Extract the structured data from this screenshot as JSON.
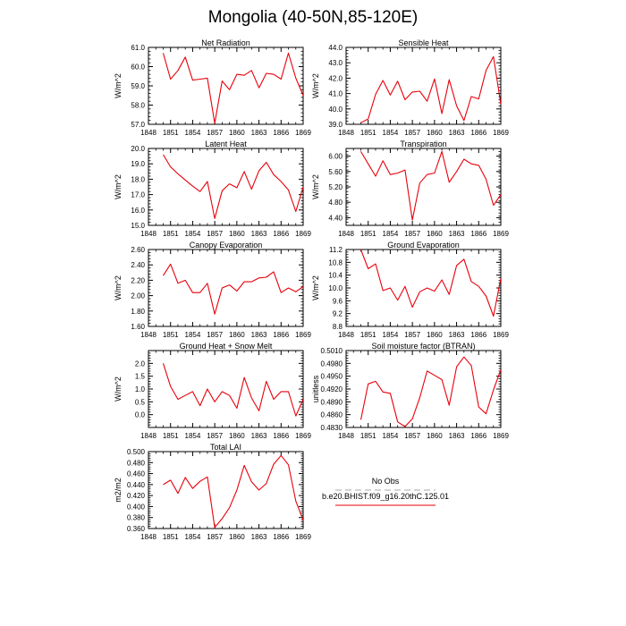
{
  "title": "Mongolia (40-50N,85-120E)",
  "legend": {
    "entries": [
      {
        "label": "No Obs",
        "color": "#aaaaaa",
        "dash": true
      },
      {
        "label": "b.e20.BHIST.f09_g16.20thC.125.01",
        "color": "#e8000b",
        "dash": false
      }
    ]
  },
  "chart_data": [
    {
      "type": "line",
      "title": "Net Radiation",
      "ylabel": "W/m^2",
      "xlim": [
        1848,
        1869
      ],
      "ylim": [
        57.0,
        61.0
      ],
      "xticks": [
        1848,
        1851,
        1854,
        1857,
        1860,
        1863,
        1866,
        1869
      ],
      "xtick_labels": [
        "1848",
        "1851",
        "1854",
        "1857",
        "1860",
        "1863",
        "1866",
        "1869"
      ],
      "yticks": [
        57.0,
        58.0,
        59.0,
        60.0,
        61.0
      ],
      "ytick_labels": [
        "57.0",
        "58.0",
        "59.0",
        "60.0",
        "61.0"
      ],
      "series": [
        {
          "color": "#e8000b",
          "x": [
            1850,
            1851,
            1852,
            1853,
            1854,
            1855,
            1856,
            1857,
            1858,
            1859,
            1860,
            1861,
            1862,
            1863,
            1864,
            1865,
            1866,
            1867,
            1868,
            1869
          ],
          "y": [
            60.7,
            59.35,
            59.8,
            60.5,
            59.3,
            59.35,
            59.4,
            57.05,
            59.25,
            58.8,
            59.6,
            59.55,
            59.8,
            58.9,
            59.65,
            59.6,
            59.35,
            60.7,
            59.4,
            58.5
          ]
        }
      ]
    },
    {
      "type": "line",
      "title": "Sensible Heat",
      "ylabel": "W/m^2",
      "xlim": [
        1848,
        1869
      ],
      "ylim": [
        39.0,
        44.0
      ],
      "xticks": [
        1848,
        1851,
        1854,
        1857,
        1860,
        1863,
        1866,
        1869
      ],
      "xtick_labels": [
        "1848",
        "1851",
        "1854",
        "1857",
        "1860",
        "1863",
        "1866",
        "1869"
      ],
      "yticks": [
        39.0,
        40.0,
        41.0,
        42.0,
        43.0,
        44.0
      ],
      "ytick_labels": [
        "39.0",
        "40.0",
        "41.0",
        "42.0",
        "43.0",
        "44.0"
      ],
      "series": [
        {
          "color": "#e8000b",
          "x": [
            1850,
            1851,
            1852,
            1853,
            1854,
            1855,
            1856,
            1857,
            1858,
            1859,
            1860,
            1861,
            1862,
            1863,
            1864,
            1865,
            1866,
            1867,
            1868,
            1869
          ],
          "y": [
            39.1,
            39.35,
            40.95,
            41.85,
            40.9,
            41.8,
            40.6,
            41.1,
            41.15,
            40.5,
            41.95,
            39.7,
            41.9,
            40.2,
            39.25,
            40.8,
            40.65,
            42.5,
            43.4,
            40.3
          ]
        }
      ]
    },
    {
      "type": "line",
      "title": "Latent Heat",
      "ylabel": "W/m^2",
      "xlim": [
        1848,
        1869
      ],
      "ylim": [
        15.0,
        20.0
      ],
      "xticks": [
        1848,
        1851,
        1854,
        1857,
        1860,
        1863,
        1866,
        1869
      ],
      "xtick_labels": [
        "1848",
        "1851",
        "1854",
        "1857",
        "1860",
        "1863",
        "1866",
        "1869"
      ],
      "yticks": [
        15.0,
        16.0,
        17.0,
        18.0,
        19.0,
        20.0
      ],
      "ytick_labels": [
        "15.0",
        "16.0",
        "17.0",
        "18.0",
        "19.0",
        "20.0"
      ],
      "series": [
        {
          "color": "#e8000b",
          "x": [
            1850,
            1851,
            1852,
            1853,
            1854,
            1855,
            1856,
            1857,
            1858,
            1859,
            1860,
            1861,
            1862,
            1863,
            1864,
            1865,
            1866,
            1867,
            1868,
            1869
          ],
          "y": [
            19.6,
            18.8,
            18.35,
            17.95,
            17.55,
            17.2,
            17.85,
            15.45,
            17.25,
            17.7,
            17.45,
            18.5,
            17.35,
            18.55,
            19.1,
            18.3,
            17.85,
            17.3,
            15.9,
            17.5
          ]
        }
      ]
    },
    {
      "type": "line",
      "title": "Transpiration",
      "ylabel": "W/m^2",
      "xlim": [
        1848,
        1869
      ],
      "ylim": [
        4.2,
        6.2
      ],
      "xticks": [
        1848,
        1851,
        1854,
        1857,
        1860,
        1863,
        1866,
        1869
      ],
      "xtick_labels": [
        "1848",
        "1851",
        "1854",
        "1857",
        "1860",
        "1863",
        "1866",
        "1869"
      ],
      "yticks": [
        4.4,
        4.8,
        5.2,
        5.6,
        6.0
      ],
      "ytick_labels": [
        "4.40",
        "4.80",
        "5.20",
        "5.60",
        "6.00"
      ],
      "series": [
        {
          "color": "#e8000b",
          "x": [
            1850,
            1851,
            1852,
            1853,
            1854,
            1855,
            1856,
            1857,
            1858,
            1859,
            1860,
            1861,
            1862,
            1863,
            1864,
            1865,
            1866,
            1867,
            1868,
            1869
          ],
          "y": [
            6.12,
            5.8,
            5.48,
            5.88,
            5.52,
            5.56,
            5.64,
            4.34,
            5.3,
            5.52,
            5.56,
            6.12,
            5.32,
            5.6,
            5.92,
            5.8,
            5.76,
            5.4,
            4.72,
            5.0
          ]
        }
      ]
    },
    {
      "type": "line",
      "title": "Canopy Evaporation",
      "ylabel": "W/m^2",
      "xlim": [
        1848,
        1869
      ],
      "ylim": [
        1.6,
        2.6
      ],
      "xticks": [
        1848,
        1851,
        1854,
        1857,
        1860,
        1863,
        1866,
        1869
      ],
      "xtick_labels": [
        "1848",
        "1851",
        "1854",
        "1857",
        "1860",
        "1863",
        "1866",
        "1869"
      ],
      "yticks": [
        1.6,
        1.8,
        2.0,
        2.2,
        2.4,
        2.6
      ],
      "ytick_labels": [
        "1.60",
        "1.80",
        "2.00",
        "2.20",
        "2.40",
        "2.60"
      ],
      "series": [
        {
          "color": "#e8000b",
          "x": [
            1850,
            1851,
            1852,
            1853,
            1854,
            1855,
            1856,
            1857,
            1858,
            1859,
            1860,
            1861,
            1862,
            1863,
            1864,
            1865,
            1866,
            1867,
            1868,
            1869
          ],
          "y": [
            2.26,
            2.41,
            2.16,
            2.2,
            2.04,
            2.04,
            2.16,
            1.76,
            2.1,
            2.14,
            2.06,
            2.18,
            2.18,
            2.23,
            2.24,
            2.31,
            2.04,
            2.1,
            2.05,
            2.12
          ]
        }
      ]
    },
    {
      "type": "line",
      "title": "Ground Evaporation",
      "ylabel": "W/m^2",
      "xlim": [
        1848,
        1869
      ],
      "ylim": [
        8.8,
        11.2
      ],
      "xticks": [
        1848,
        1851,
        1854,
        1857,
        1860,
        1863,
        1866,
        1869
      ],
      "xtick_labels": [
        "1848",
        "1851",
        "1854",
        "1857",
        "1860",
        "1863",
        "1866",
        "1869"
      ],
      "yticks": [
        8.8,
        9.2,
        9.6,
        10.0,
        10.4,
        10.8,
        11.2
      ],
      "ytick_labels": [
        "8.8",
        "9.2",
        "9.6",
        "10.0",
        "10.4",
        "10.8",
        "11.2"
      ],
      "series": [
        {
          "color": "#e8000b",
          "x": [
            1850,
            1851,
            1852,
            1853,
            1854,
            1855,
            1856,
            1857,
            1858,
            1859,
            1860,
            1861,
            1862,
            1863,
            1864,
            1865,
            1866,
            1867,
            1868,
            1869
          ],
          "y": [
            11.2,
            10.6,
            10.75,
            9.92,
            10.0,
            9.62,
            10.05,
            9.4,
            9.88,
            10.0,
            9.9,
            10.25,
            9.8,
            10.7,
            10.9,
            10.2,
            10.05,
            9.75,
            9.12,
            10.3
          ]
        }
      ]
    },
    {
      "type": "line",
      "title": "Ground Heat + Snow Melt",
      "ylabel": "W/m^2",
      "xlim": [
        1848,
        1869
      ],
      "ylim": [
        -0.5,
        2.5
      ],
      "xticks": [
        1848,
        1851,
        1854,
        1857,
        1860,
        1863,
        1866,
        1869
      ],
      "xtick_labels": [
        "1848",
        "1851",
        "1854",
        "1857",
        "1860",
        "1863",
        "1866",
        "1869"
      ],
      "yticks": [
        0.0,
        0.5,
        1.0,
        1.5,
        2.0
      ],
      "ytick_labels": [
        "0.0",
        "0.5",
        "1.0",
        "1.5",
        "2.0"
      ],
      "series": [
        {
          "color": "#e8000b",
          "x": [
            1850,
            1851,
            1852,
            1853,
            1854,
            1855,
            1856,
            1857,
            1858,
            1859,
            1860,
            1861,
            1862,
            1863,
            1864,
            1865,
            1866,
            1867,
            1868,
            1869
          ],
          "y": [
            2.0,
            1.1,
            0.6,
            0.75,
            0.9,
            0.35,
            1.0,
            0.5,
            0.9,
            0.75,
            0.25,
            1.45,
            0.65,
            0.15,
            1.3,
            0.6,
            0.9,
            0.9,
            -0.05,
            0.6
          ]
        }
      ]
    },
    {
      "type": "line",
      "title": "Soil moisture factor (BTRAN)",
      "ylabel": "unitless",
      "xlim": [
        1848,
        1869
      ],
      "ylim": [
        0.483,
        0.501
      ],
      "xticks": [
        1848,
        1851,
        1854,
        1857,
        1860,
        1863,
        1866,
        1869
      ],
      "xtick_labels": [
        "1848",
        "1851",
        "1854",
        "1857",
        "1860",
        "1863",
        "1866",
        "1869"
      ],
      "yticks": [
        0.483,
        0.486,
        0.489,
        0.492,
        0.495,
        0.498,
        0.501
      ],
      "ytick_labels": [
        "0.4830",
        "0.4860",
        "0.4890",
        "0.4920",
        "0.4950",
        "0.4980",
        "0.5010"
      ],
      "series": [
        {
          "color": "#e8000b",
          "x": [
            1850,
            1851,
            1852,
            1853,
            1854,
            1855,
            1856,
            1857,
            1858,
            1859,
            1860,
            1861,
            1862,
            1863,
            1864,
            1865,
            1866,
            1867,
            1868,
            1869
          ],
          "y": [
            0.4848,
            0.4932,
            0.4938,
            0.4913,
            0.491,
            0.4843,
            0.4832,
            0.485,
            0.49,
            0.4962,
            0.4952,
            0.4942,
            0.4882,
            0.4972,
            0.4995,
            0.4975,
            0.4878,
            0.4862,
            0.4918,
            0.4965
          ]
        }
      ]
    },
    {
      "type": "line",
      "title": "Total LAI",
      "ylabel": "m2/m2",
      "xlim": [
        1848,
        1869
      ],
      "ylim": [
        0.36,
        0.5
      ],
      "xticks": [
        1848,
        1851,
        1854,
        1857,
        1860,
        1863,
        1866,
        1869
      ],
      "xtick_labels": [
        "1848",
        "1851",
        "1854",
        "1857",
        "1860",
        "1863",
        "1866",
        "1869"
      ],
      "yticks": [
        0.36,
        0.38,
        0.4,
        0.42,
        0.44,
        0.46,
        0.48,
        0.5
      ],
      "ytick_labels": [
        "0.360",
        "0.380",
        "0.400",
        "0.420",
        "0.440",
        "0.460",
        "0.480",
        "0.500"
      ],
      "series": [
        {
          "color": "#e8000b",
          "x": [
            1850,
            1851,
            1852,
            1853,
            1854,
            1855,
            1856,
            1857,
            1858,
            1859,
            1860,
            1861,
            1862,
            1863,
            1864,
            1865,
            1866,
            1867,
            1868,
            1869
          ],
          "y": [
            0.44,
            0.448,
            0.424,
            0.453,
            0.433,
            0.446,
            0.454,
            0.362,
            0.378,
            0.398,
            0.43,
            0.475,
            0.445,
            0.43,
            0.442,
            0.477,
            0.493,
            0.476,
            0.41,
            0.375
          ]
        }
      ]
    }
  ]
}
